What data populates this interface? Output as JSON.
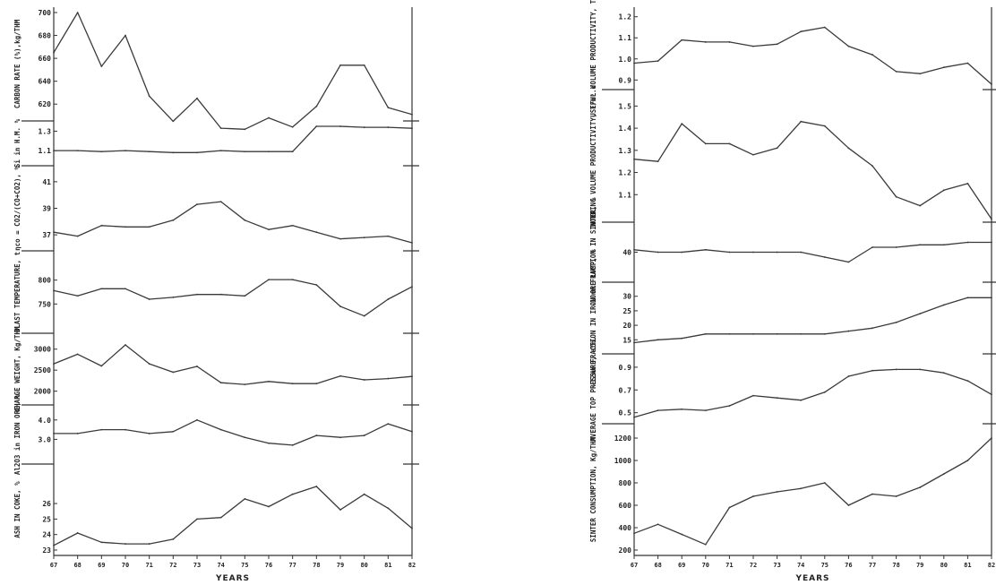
{
  "chart_data": [
    {
      "type": "line",
      "x_axis": {
        "label": "YEARS",
        "categories": [
          "67",
          "68",
          "69",
          "70",
          "71",
          "72",
          "73",
          "74",
          "75",
          "76",
          "77",
          "78",
          "79",
          "80",
          "81",
          "82"
        ]
      },
      "panels": [
        {
          "label": "CARBON RATE (%),kg/THM",
          "yticks": [
            "700",
            "680",
            "660",
            "640",
            "620"
          ],
          "ylim": [
            610,
            700
          ],
          "values": [
            665,
            700,
            653,
            680,
            627,
            605,
            625,
            599,
            598,
            608,
            600,
            618,
            654,
            654,
            617,
            611
          ]
        },
        {
          "label": "Si in H.M. %",
          "yticks": [
            "1.3",
            "1.1"
          ],
          "ylim": [
            1.0,
            1.35
          ],
          "values": [
            1.1,
            1.1,
            1.09,
            1.1,
            1.09,
            1.08,
            1.08,
            1.1,
            1.09,
            1.09,
            1.09,
            1.35,
            1.35,
            1.34,
            1.34,
            1.33
          ]
        },
        {
          "label": "ηco = CO2/(CO+CO2), %",
          "yticks": [
            "41",
            "39",
            "37"
          ],
          "ylim": [
            36.2,
            41.8
          ],
          "values": [
            37.2,
            36.9,
            37.7,
            37.6,
            37.6,
            38.1,
            39.3,
            39.5,
            38.1,
            37.4,
            37.7,
            37.2,
            36.7,
            36.8,
            36.9,
            36.4
          ]
        },
        {
          "label": "BLAST TEMPERATURE, t",
          "yticks": [
            "800",
            "750"
          ],
          "ylim": [
            700,
            850
          ],
          "values": [
            778,
            767,
            782,
            782,
            760,
            764,
            770,
            770,
            767,
            801,
            801,
            790,
            745,
            725,
            760,
            786
          ]
        },
        {
          "label": "CHARGE WEIGHT, Kg/THM",
          "yticks": [
            "3000",
            "2500",
            "2000"
          ],
          "ylim": [
            1800,
            3250
          ],
          "values": [
            2650,
            2880,
            2600,
            3100,
            2650,
            2450,
            2590,
            2200,
            2160,
            2230,
            2180,
            2180,
            2360,
            2270,
            2300,
            2350
          ]
        },
        {
          "label": "Al2O3 in IRON ORE, %",
          "yticks": [
            "4.0",
            "3.0"
          ],
          "ylim": [
            2.0,
            4.5
          ],
          "values": [
            3.3,
            3.3,
            3.5,
            3.5,
            3.3,
            3.4,
            4.0,
            3.5,
            3.1,
            2.8,
            2.7,
            3.2,
            3.1,
            3.2,
            3.8,
            3.4
          ]
        },
        {
          "label": "ASH IN COKE, %",
          "yticks": [
            "26",
            "25",
            "24",
            "23"
          ],
          "ylim": [
            23,
            28.2
          ],
          "values": [
            23.3,
            24.1,
            23.5,
            23.4,
            23.4,
            23.7,
            25.0,
            25.1,
            26.3,
            25.8,
            26.6,
            27.1,
            25.6,
            26.6,
            25.7,
            24.4
          ]
        }
      ]
    },
    {
      "type": "line",
      "x_axis": {
        "label": "YEARS",
        "categories": [
          "67",
          "68",
          "69",
          "70",
          "71",
          "72",
          "73",
          "74",
          "75",
          "76",
          "77",
          "78",
          "79",
          "80",
          "81",
          "82"
        ]
      },
      "panels": [
        {
          "label": "USEFUL VOLUME PRODUCTIVITY, T/m³.d",
          "yticks": [
            "1.2",
            "1.1",
            "1.0",
            "0.9"
          ],
          "ylim": [
            0.88,
            1.22
          ],
          "values": [
            0.98,
            0.99,
            1.09,
            1.08,
            1.08,
            1.06,
            1.07,
            1.13,
            1.15,
            1.06,
            1.02,
            0.94,
            0.93,
            0.96,
            0.98,
            0.88
          ]
        },
        {
          "label": "WORKING VOLUME PRODUCTIVITY, T/m³.d",
          "yticks": [
            "1.5",
            "1.4",
            "1.3",
            "1.2",
            "1.1"
          ],
          "ylim": [
            1.0,
            1.55
          ],
          "values": [
            1.26,
            1.25,
            1.42,
            1.33,
            1.33,
            1.28,
            1.31,
            1.43,
            1.41,
            1.31,
            1.23,
            1.09,
            1.05,
            1.12,
            1.15,
            0.99
          ]
        },
        {
          "label": "-10mm FRACTION IN SINTER, %",
          "yticks": [
            "40"
          ],
          "ylim": [
            30,
            50
          ],
          "values": [
            41,
            40,
            40,
            41,
            40,
            40,
            40,
            40,
            38,
            36,
            42,
            42,
            43,
            43,
            44,
            44
          ]
        },
        {
          "label": "-12mm FRACTION IN IRON ORE LUMP, %",
          "yticks": [
            "30",
            "25",
            "20",
            "15"
          ],
          "ylim": [
            12,
            33
          ],
          "values": [
            14,
            15,
            15.5,
            17,
            17,
            17,
            17,
            17,
            17,
            18,
            19,
            21,
            24,
            27,
            29.5,
            29.5
          ]
        },
        {
          "label": "AVERAGE TOP PRESSURE, atm.",
          "yticks": [
            "0.9",
            "0.7",
            "0.5"
          ],
          "ylim": [
            0.45,
            0.97
          ],
          "values": [
            0.46,
            0.52,
            0.53,
            0.52,
            0.56,
            0.65,
            0.63,
            0.61,
            0.68,
            0.82,
            0.87,
            0.88,
            0.88,
            0.85,
            0.78,
            0.66
          ]
        },
        {
          "label": "SINTER CONSUMPTION, Kg/THM",
          "yticks": [
            "1200",
            "1000",
            "800",
            "600",
            "400",
            "200"
          ],
          "ylim": [
            200,
            1280
          ],
          "values": [
            350,
            430,
            340,
            250,
            580,
            680,
            720,
            750,
            800,
            600,
            700,
            680,
            760,
            880,
            1000,
            1200
          ]
        }
      ]
    }
  ]
}
